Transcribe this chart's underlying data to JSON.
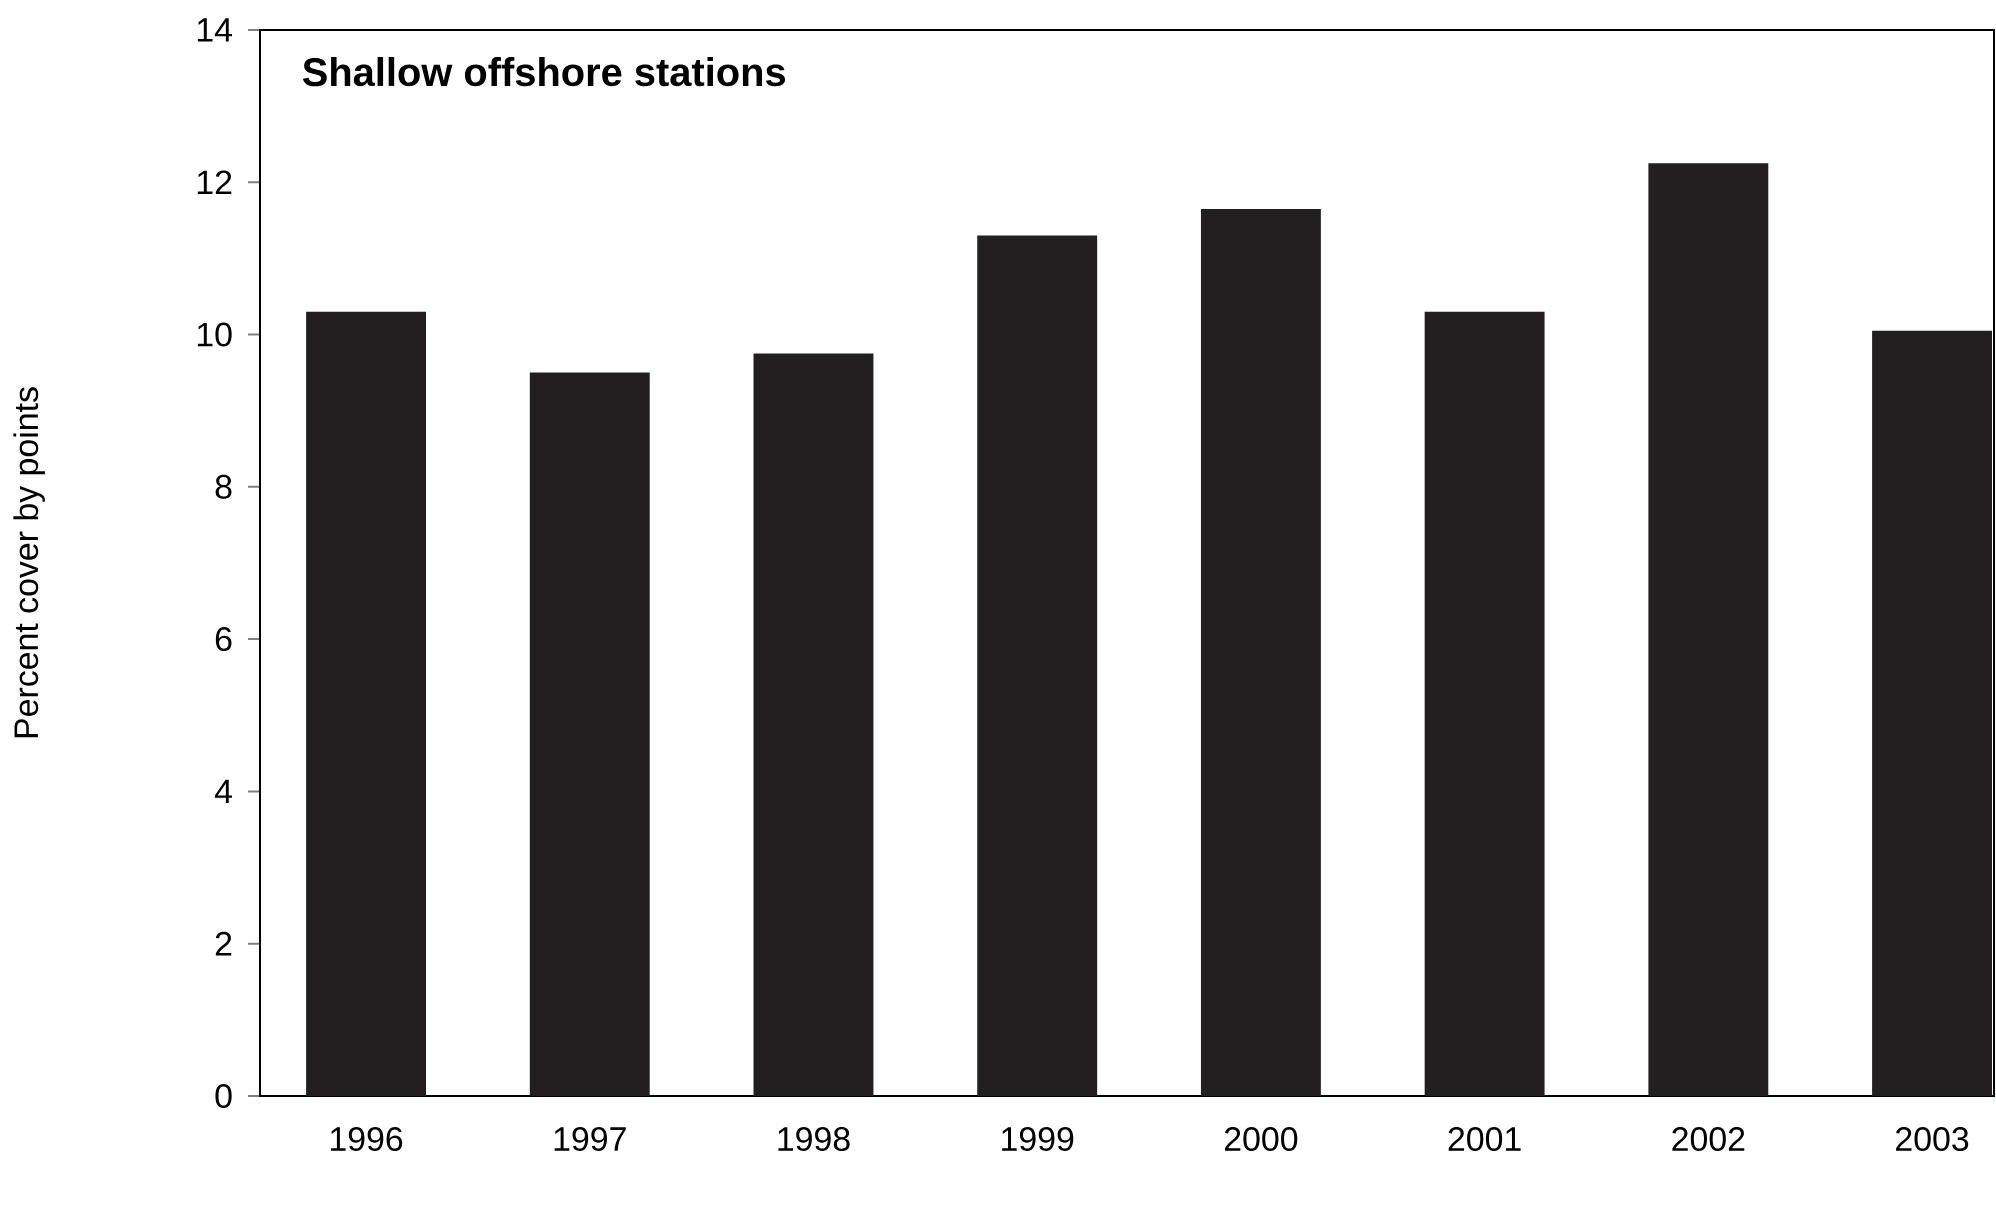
{
  "chart_data": {
    "type": "bar",
    "title": "Shallow offshore stations",
    "ylabel": "Percent cover by points",
    "categories": [
      "1996",
      "1997",
      "1998",
      "1999",
      "2000",
      "2001",
      "2002",
      "2003"
    ],
    "values": [
      10.3,
      9.5,
      9.75,
      11.3,
      11.65,
      10.3,
      12.25,
      10.05
    ],
    "color": "#231f20",
    "ylim": [
      0,
      14
    ],
    "yticks": [
      0,
      2,
      4,
      6,
      8,
      10,
      12,
      14
    ],
    "grid": false
  }
}
